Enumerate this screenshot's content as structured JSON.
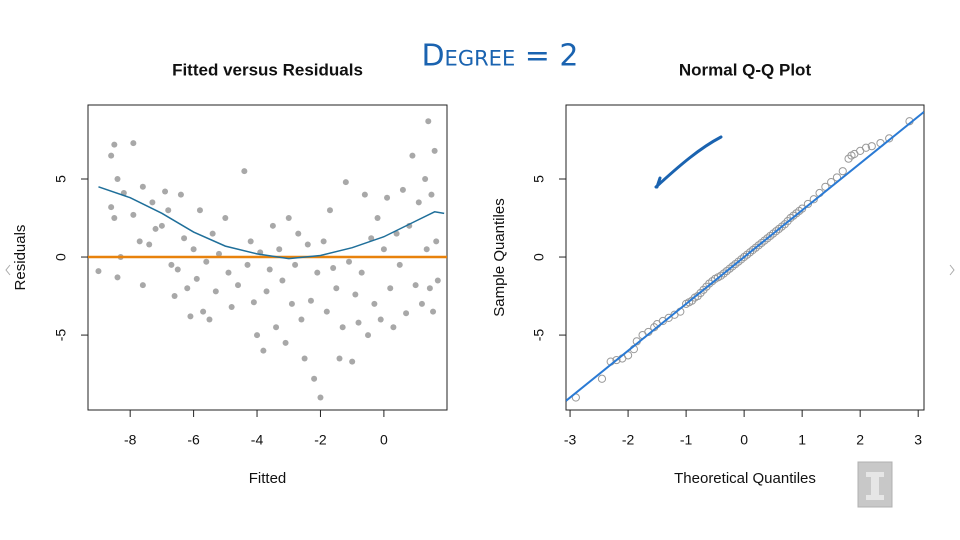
{
  "annotation": "Degree = 2",
  "chart_data": [
    {
      "type": "scatter",
      "title": "Fitted versus Residuals",
      "xlabel": "Fitted",
      "ylabel": "Residuals",
      "xlim": [
        -9.33,
        1.99
      ],
      "ylim": [
        -9.8,
        9.74
      ],
      "xticks": [
        -8,
        -6,
        -4,
        -2,
        0
      ],
      "yticks": [
        -5,
        0,
        5
      ],
      "color": "#a8a8a8",
      "x": [
        -9.0,
        -8.6,
        -8.5,
        -8.4,
        -8.6,
        -8.5,
        -8.3,
        -8.4,
        -8.2,
        -7.9,
        -7.9,
        -7.7,
        -7.6,
        -7.6,
        -7.4,
        -7.3,
        -7.2,
        -7.0,
        -6.9,
        -6.8,
        -6.7,
        -6.6,
        -6.5,
        -6.4,
        -6.3,
        -6.2,
        -6.1,
        -6.0,
        -5.9,
        -5.8,
        -5.7,
        -5.6,
        -5.5,
        -5.4,
        -5.3,
        -5.2,
        -5.0,
        -4.9,
        -4.8,
        -4.6,
        -4.4,
        -4.3,
        -4.2,
        -4.1,
        -4.0,
        -3.9,
        -3.8,
        -3.7,
        -3.6,
        -3.5,
        -3.4,
        -3.3,
        -3.2,
        -3.1,
        -3.0,
        -2.9,
        -2.8,
        -2.7,
        -2.6,
        -2.5,
        -2.4,
        -2.3,
        -2.2,
        -2.1,
        -2.0,
        -1.9,
        -1.8,
        -1.7,
        -1.6,
        -1.5,
        -1.4,
        -1.3,
        -1.2,
        -1.1,
        -1.0,
        -0.9,
        -0.8,
        -0.7,
        -0.6,
        -0.5,
        -0.4,
        -0.3,
        -0.2,
        -0.1,
        0.0,
        0.1,
        0.2,
        0.3,
        0.4,
        0.5,
        0.6,
        0.7,
        0.8,
        0.9,
        1.0,
        1.1,
        1.2,
        1.3,
        1.35,
        1.4,
        1.45,
        1.5,
        1.55,
        1.6,
        1.65,
        1.7
      ],
      "values": [
        -0.9,
        6.5,
        7.2,
        5.0,
        3.2,
        2.5,
        0.0,
        -1.3,
        4.1,
        7.3,
        2.7,
        1.0,
        -1.8,
        4.5,
        0.8,
        3.5,
        1.8,
        2.0,
        4.2,
        3.0,
        -0.5,
        -2.5,
        -0.8,
        4.0,
        1.2,
        -2.0,
        -3.8,
        0.5,
        -1.4,
        3.0,
        -3.5,
        -0.3,
        -4.0,
        1.5,
        -2.2,
        0.2,
        2.5,
        -1.0,
        -3.2,
        -1.8,
        5.5,
        -0.5,
        1.0,
        -2.9,
        -5.0,
        0.3,
        -6.0,
        -2.2,
        -0.8,
        2.0,
        -4.5,
        0.5,
        -1.5,
        -5.5,
        2.5,
        -3.0,
        -0.5,
        1.5,
        -4.0,
        -6.5,
        0.8,
        -2.8,
        -7.8,
        -1.0,
        -9.0,
        1.0,
        -3.5,
        3.0,
        -0.7,
        -2.0,
        -6.5,
        -4.5,
        4.8,
        -0.3,
        -6.7,
        -2.4,
        -4.2,
        -1.0,
        4.0,
        -5.0,
        1.2,
        -3.0,
        2.5,
        -4.0,
        0.5,
        3.8,
        -2.0,
        -4.5,
        1.5,
        -0.5,
        4.3,
        -3.6,
        2.0,
        6.5,
        -1.8,
        3.5,
        -3.0,
        5.0,
        0.5,
        8.7,
        -2.0,
        4.0,
        -3.5,
        6.8,
        1.0,
        -1.5
      ],
      "hline": 0,
      "hline_color": "#e8820c",
      "smooth": {
        "color": "#1f6f9a",
        "x": [
          -9,
          -8,
          -7,
          -6,
          -5,
          -4,
          -3,
          -2,
          -1,
          0,
          1,
          1.6,
          1.9
        ],
        "values": [
          4.5,
          3.8,
          2.8,
          1.6,
          0.7,
          0.2,
          -0.1,
          0.1,
          0.6,
          1.3,
          2.3,
          2.9,
          2.8
        ]
      }
    },
    {
      "type": "qq",
      "title": "Normal Q-Q Plot",
      "xlabel": "Theoretical Quantiles",
      "ylabel": "Sample Quantiles",
      "xlim": [
        -3.07,
        3.1
      ],
      "ylim": [
        -9.8,
        9.74
      ],
      "xticks": [
        -3,
        -2,
        -1,
        0,
        1,
        2,
        3
      ],
      "yticks": [
        -5,
        0,
        5
      ],
      "color": "#999999",
      "x": [
        -2.9,
        -2.45,
        -2.3,
        -2.2,
        -2.1,
        -2.0,
        -1.9,
        -1.85,
        -1.75,
        -1.65,
        -1.55,
        -1.5,
        -1.4,
        -1.3,
        -1.2,
        -1.1,
        -1.0,
        -0.95,
        -0.9,
        -0.85,
        -0.8,
        -0.75,
        -0.7,
        -0.65,
        -0.6,
        -0.55,
        -0.5,
        -0.45,
        -0.4,
        -0.35,
        -0.3,
        -0.25,
        -0.2,
        -0.15,
        -0.1,
        -0.05,
        0,
        0.05,
        0.1,
        0.15,
        0.2,
        0.25,
        0.3,
        0.35,
        0.4,
        0.45,
        0.5,
        0.55,
        0.6,
        0.65,
        0.7,
        0.75,
        0.8,
        0.85,
        0.9,
        0.95,
        1.0,
        1.1,
        1.2,
        1.3,
        1.4,
        1.5,
        1.6,
        1.7,
        1.8,
        1.85,
        1.9,
        2.0,
        2.1,
        2.2,
        2.35,
        2.5,
        2.85
      ],
      "values": [
        -9.0,
        -7.8,
        -6.7,
        -6.6,
        -6.5,
        -6.3,
        -5.9,
        -5.4,
        -5.0,
        -4.8,
        -4.5,
        -4.3,
        -4.1,
        -3.9,
        -3.7,
        -3.5,
        -3.0,
        -2.9,
        -2.8,
        -2.6,
        -2.5,
        -2.3,
        -2.1,
        -1.9,
        -1.7,
        -1.55,
        -1.4,
        -1.3,
        -1.2,
        -1.05,
        -0.9,
        -0.75,
        -0.6,
        -0.45,
        -0.3,
        -0.15,
        0.0,
        0.15,
        0.3,
        0.45,
        0.6,
        0.75,
        0.9,
        1.05,
        1.2,
        1.35,
        1.5,
        1.65,
        1.8,
        1.95,
        2.1,
        2.3,
        2.5,
        2.65,
        2.8,
        2.95,
        3.1,
        3.4,
        3.7,
        4.1,
        4.5,
        4.8,
        5.1,
        5.5,
        6.3,
        6.5,
        6.6,
        6.8,
        7.0,
        7.1,
        7.3,
        7.6,
        8.7
      ],
      "qq_line": {
        "intercept": 0,
        "slope": 3,
        "color": "#2a7ad4"
      }
    }
  ]
}
